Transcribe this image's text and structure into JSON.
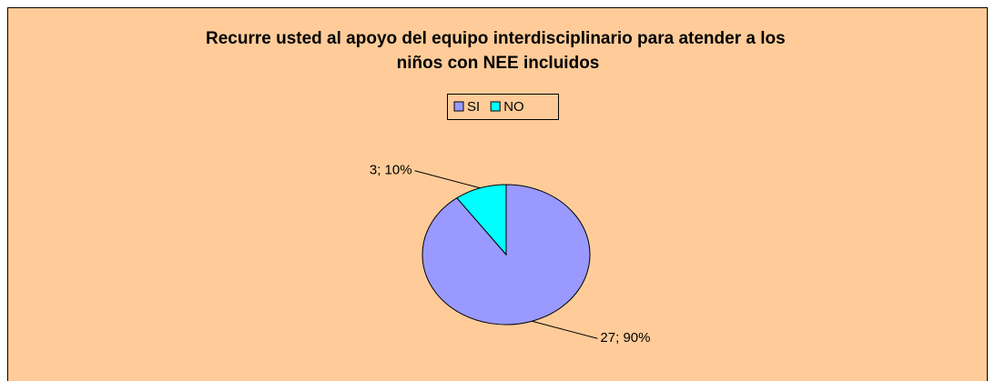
{
  "chart_data": {
    "type": "pie",
    "title": "Recurre usted al apoyo del equipo interdisciplinario para atender a los niños con NEE incluidos",
    "categories": [
      "SI",
      "NO"
    ],
    "values": [
      27,
      3
    ],
    "value_labels": [
      "27; 90%",
      "3; 10%"
    ],
    "colors": [
      "#9999ff",
      "#00ffff"
    ],
    "legend": "top"
  }
}
